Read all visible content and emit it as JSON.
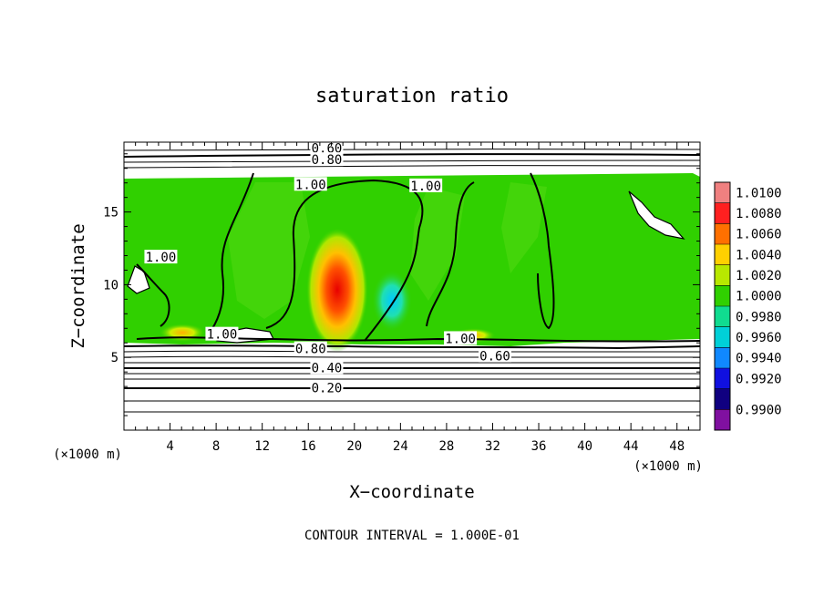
{
  "chart_data": {
    "type": "heatmap",
    "title": "saturation ratio",
    "xlabel": "X−coordinate",
    "ylabel": "Z−coordinate",
    "x_unit": "(×1000 m)",
    "z_unit": "(×1000 m)",
    "xlim": [
      0,
      50
    ],
    "ylim": [
      0,
      19.8
    ],
    "x_ticks": [
      4,
      8,
      12,
      16,
      20,
      24,
      28,
      32,
      36,
      40,
      44,
      48
    ],
    "y_ticks": [
      5,
      10,
      15
    ],
    "colorbar": {
      "levels": [
        "1.0100",
        "1.0080",
        "1.0060",
        "1.0040",
        "1.0020",
        "1.0000",
        "0.9980",
        "0.9960",
        "0.9940",
        "0.9920",
        "0.9900"
      ],
      "colors": [
        "#f08080",
        "#ff2020",
        "#ff7000",
        "#ffd000",
        "#b8e800",
        "#30d000",
        "#10dc90",
        "#00d0d8",
        "#1088ff",
        "#1010e0",
        "#100080",
        "#8010a0"
      ]
    },
    "background_color": "#30d000",
    "contour_labels": [
      {
        "text": "0.60",
        "x": 17.6,
        "z": 19.4
      },
      {
        "text": "0.80",
        "x": 17.6,
        "z": 18.6
      },
      {
        "text": "1.00",
        "x": 16.2,
        "z": 16.9
      },
      {
        "text": "1.00",
        "x": 26.2,
        "z": 16.8
      },
      {
        "text": "1.00",
        "x": 3.2,
        "z": 11.9
      },
      {
        "text": "1.00",
        "x": 8.5,
        "z": 6.6
      },
      {
        "text": "1.00",
        "x": 29.2,
        "z": 6.3
      },
      {
        "text": "0.80",
        "x": 16.2,
        "z": 5.6
      },
      {
        "text": "0.60",
        "x": 32.2,
        "z": 5.1
      },
      {
        "text": "0.40",
        "x": 17.6,
        "z": 4.3
      },
      {
        "text": "0.20",
        "x": 17.6,
        "z": 2.9
      }
    ],
    "footer": "CONTOUR INTERVAL = 1.000E-01"
  }
}
